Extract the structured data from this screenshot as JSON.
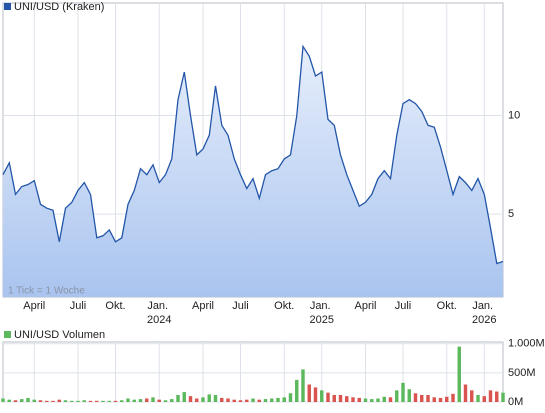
{
  "chart_data": [
    {
      "type": "area",
      "title": "UNI/USD (Kraken)",
      "note": "1 Tick = 1 Woche",
      "color": "#2356a8",
      "fill": "#c9dbf5",
      "grid": true,
      "categories": [
        null,
        null,
        null,
        null,
        null,
        "April",
        null,
        null,
        null,
        null,
        null,
        null,
        "Juli",
        null,
        null,
        null,
        null,
        null,
        "Okt.",
        null,
        null,
        null,
        null,
        null,
        null,
        "Jan. 2024",
        null,
        null,
        null,
        null,
        null,
        null,
        "April",
        null,
        null,
        null,
        null,
        null,
        "Juli",
        null,
        null,
        null,
        null,
        null,
        null,
        "Okt.",
        null,
        null,
        null,
        null,
        null,
        "Jan. 2025",
        null,
        null,
        null,
        null,
        null,
        null,
        "April",
        null,
        null,
        null,
        null,
        null,
        "Juli",
        null,
        null,
        null,
        null,
        null,
        null,
        "Okt.",
        null,
        null,
        null,
        null,
        null,
        "Jan. 2026",
        null,
        null,
        null
      ],
      "values": [
        7.0,
        7.6,
        6.0,
        6.4,
        6.5,
        6.7,
        5.5,
        5.3,
        5.2,
        3.6,
        5.3,
        5.6,
        6.2,
        6.6,
        6.0,
        3.8,
        3.9,
        4.2,
        3.6,
        3.8,
        5.5,
        6.2,
        7.3,
        7.0,
        7.5,
        6.6,
        7.0,
        7.8,
        10.8,
        12.2,
        10.0,
        8.0,
        8.3,
        9.0,
        11.5,
        9.5,
        9.0,
        7.8,
        7.0,
        6.3,
        6.8,
        5.8,
        7.0,
        7.2,
        7.3,
        7.8,
        8.0,
        10.0,
        13.5,
        13.0,
        12.0,
        12.2,
        9.8,
        9.5,
        8.0,
        7.0,
        6.2,
        5.4,
        5.6,
        6.0,
        6.8,
        7.2,
        6.8,
        9.0,
        10.6,
        10.8,
        10.6,
        10.2,
        9.5,
        9.4,
        8.4,
        7.2,
        6.0,
        6.9,
        6.6,
        6.2,
        6.8,
        6.0,
        4.3,
        2.5,
        2.6
      ],
      "ylim": [
        0.8,
        15.7
      ],
      "yticks": [
        5,
        10
      ]
    },
    {
      "type": "bar",
      "title": "UNI/USD Volumen",
      "up_color": "#5cb85c",
      "down_color": "#d9534f",
      "legend_color": "#5cb85c",
      "values": [
        60,
        40,
        30,
        50,
        70,
        40,
        30,
        20,
        20,
        40,
        30,
        20,
        20,
        30,
        20,
        20,
        20,
        20,
        20,
        30,
        60,
        40,
        50,
        60,
        80,
        40,
        30,
        50,
        120,
        170,
        100,
        60,
        80,
        130,
        120,
        70,
        60,
        40,
        30,
        40,
        60,
        40,
        50,
        60,
        70,
        80,
        150,
        380,
        560,
        300,
        250,
        200,
        160,
        120,
        120,
        100,
        80,
        70,
        60,
        50,
        60,
        90,
        80,
        200,
        330,
        220,
        150,
        120,
        120,
        80,
        70,
        90,
        140,
        950,
        300,
        200,
        120,
        100,
        200,
        180,
        160
      ],
      "ylim": [
        0,
        1030
      ],
      "yticks": [
        {
          "value": 0,
          "label": "0M"
        },
        {
          "value": 500,
          "label": "500M"
        },
        {
          "value": 1000,
          "label": "1.000M"
        }
      ]
    }
  ]
}
